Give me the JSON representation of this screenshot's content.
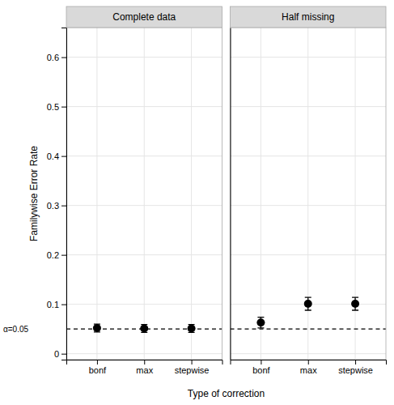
{
  "chart_data": [
    {
      "type": "scatter",
      "title": "Complete data",
      "categories": [
        "bonf",
        "max",
        "stepwise"
      ],
      "values": [
        0.052,
        0.051,
        0.051
      ],
      "ci_low": [
        0.044,
        0.043,
        0.043
      ],
      "ci_high": [
        0.06,
        0.059,
        0.059
      ],
      "color": "#000000",
      "ylabel": "Familywise Error Rate",
      "xlabel": "Type of correction",
      "reference_line": {
        "value": 0.05,
        "label": "α=0.05"
      },
      "ylim": [
        -0.012,
        0.66
      ],
      "yticks": [
        0,
        0.1,
        0.2,
        0.3,
        0.4,
        0.5,
        0.6
      ],
      "grid": true
    },
    {
      "type": "scatter",
      "title": "Half missing",
      "categories": [
        "bonf",
        "max",
        "stepwise"
      ],
      "values": [
        0.063,
        0.101,
        0.101
      ],
      "ci_low": [
        0.052,
        0.088,
        0.088
      ],
      "ci_high": [
        0.074,
        0.114,
        0.114
      ],
      "color": "#000000",
      "reference_line": {
        "value": 0.05
      },
      "ylim": [
        -0.012,
        0.66
      ],
      "yticks": [
        0,
        0.1,
        0.2,
        0.3,
        0.4,
        0.5,
        0.6
      ],
      "grid": true,
      "tick_labels": "x"
    }
  ]
}
